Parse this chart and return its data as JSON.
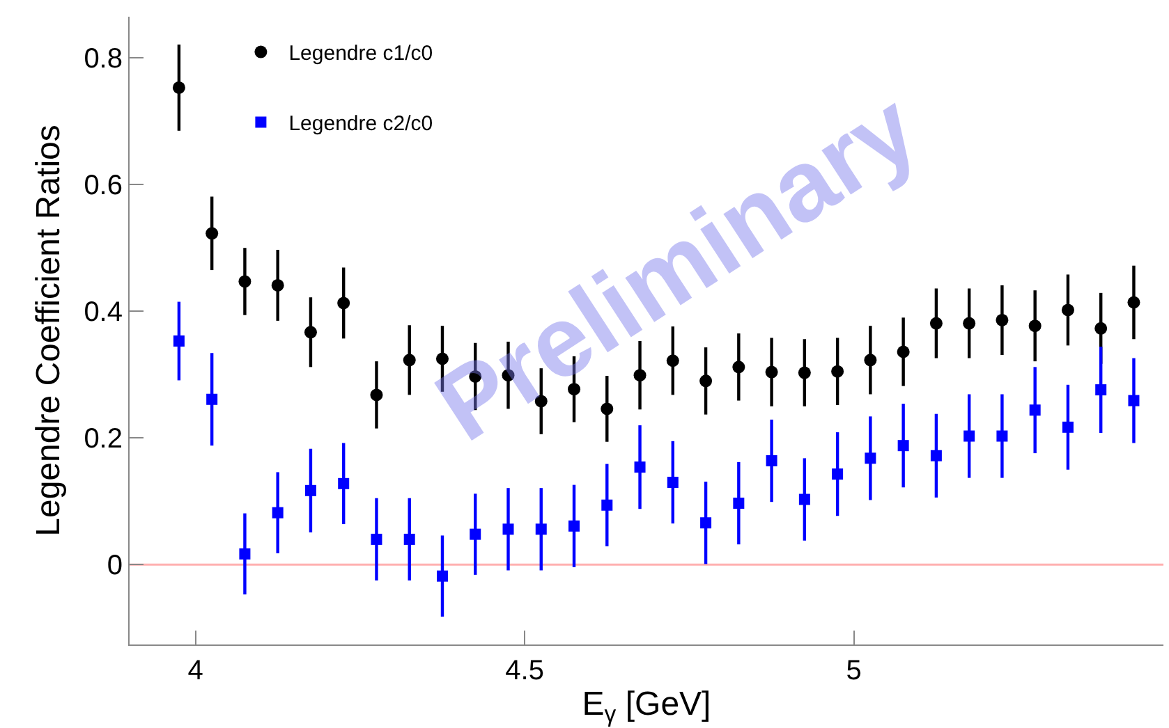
{
  "chart_data": {
    "type": "scatter",
    "xlabel": "E$_{γ}$ [GeV]",
    "ylabel": "Legendre Coefficient Ratios",
    "x": [
      3.975,
      4.025,
      4.075,
      4.125,
      4.175,
      4.225,
      4.275,
      4.325,
      4.375,
      4.425,
      4.475,
      4.525,
      4.575,
      4.625,
      4.675,
      4.725,
      4.775,
      4.825,
      4.875,
      4.925,
      4.975,
      5.025,
      5.075,
      5.125,
      5.175,
      5.225,
      5.275,
      5.325,
      5.375,
      5.425
    ],
    "series": [
      {
        "name": "Legendre c1/c0",
        "color": "#000000",
        "marker": "circle",
        "values": [
          0.753,
          0.523,
          0.447,
          0.441,
          0.367,
          0.413,
          0.268,
          0.323,
          0.325,
          0.297,
          0.299,
          0.258,
          0.277,
          0.246,
          0.299,
          0.322,
          0.29,
          0.312,
          0.304,
          0.303,
          0.305,
          0.323,
          0.336,
          0.381,
          0.381,
          0.386,
          0.377,
          0.402,
          0.373,
          0.414
        ],
        "errors": [
          0.068,
          0.058,
          0.053,
          0.056,
          0.055,
          0.056,
          0.053,
          0.055,
          0.052,
          0.053,
          0.053,
          0.052,
          0.052,
          0.052,
          0.054,
          0.054,
          0.053,
          0.053,
          0.054,
          0.053,
          0.053,
          0.054,
          0.054,
          0.055,
          0.055,
          0.055,
          0.056,
          0.056,
          0.056,
          0.058
        ]
      },
      {
        "name": "Legendre c2/c0",
        "color": "#0000ff",
        "marker": "square",
        "values": [
          0.353,
          0.261,
          0.017,
          0.082,
          0.117,
          0.128,
          0.04,
          0.04,
          -0.018,
          0.048,
          0.056,
          0.056,
          0.061,
          0.094,
          0.154,
          0.13,
          0.066,
          0.097,
          0.164,
          0.103,
          0.143,
          0.168,
          0.188,
          0.172,
          0.203,
          0.203,
          0.244,
          0.217,
          0.276,
          0.259
        ],
        "errors": [
          0.062,
          0.073,
          0.064,
          0.064,
          0.066,
          0.064,
          0.065,
          0.065,
          0.064,
          0.064,
          0.065,
          0.065,
          0.065,
          0.065,
          0.066,
          0.065,
          0.065,
          0.065,
          0.065,
          0.065,
          0.066,
          0.066,
          0.066,
          0.066,
          0.066,
          0.066,
          0.068,
          0.067,
          0.068,
          0.067
        ]
      }
    ],
    "xlim": [
      3.9,
      5.47
    ],
    "xticks": [
      4,
      4.5,
      5
    ],
    "ylim": [
      -0.126,
      0.865
    ],
    "yticks": [
      0,
      0.2,
      0.4,
      0.6,
      0.8
    ],
    "ref_lines": [
      {
        "axis": "y",
        "value": 0,
        "color": "#ffb0b0"
      }
    ],
    "annotations": [
      "Preliminary"
    ],
    "grid": false,
    "legend": "top left"
  }
}
